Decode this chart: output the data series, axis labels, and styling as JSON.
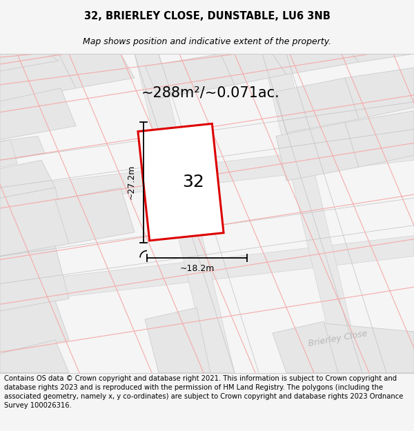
{
  "title_line1": "32, BRIERLEY CLOSE, DUNSTABLE, LU6 3NB",
  "title_line2": "Map shows position and indicative extent of the property.",
  "area_text": "~288m²/~0.071ac.",
  "property_number": "32",
  "dim_height": "~27.2m",
  "dim_width": "~18.2m",
  "street_label": "Brierley Close",
  "footer_text": "Contains OS data © Crown copyright and database right 2021. This information is subject to Crown copyright and database rights 2023 and is reproduced with the permission of HM Land Registry. The polygons (including the associated geometry, namely x, y co-ordinates) are subject to Crown copyright and database rights 2023 Ordnance Survey 100026316.",
  "bg_color": "#f5f5f5",
  "map_bg": "#ffffff",
  "plot_outline_color": "#dd0000",
  "road_color": "#e8e8e8",
  "building_color": "#e6e6e6",
  "pink_line_color": "#f5aaaa",
  "gray_line_color": "#cccccc",
  "title_fontsize": 10.5,
  "subtitle_fontsize": 9,
  "footer_fontsize": 7.2,
  "area_fontsize": 15,
  "prop_num_fontsize": 18,
  "dim_fontsize": 9,
  "street_fontsize": 9
}
